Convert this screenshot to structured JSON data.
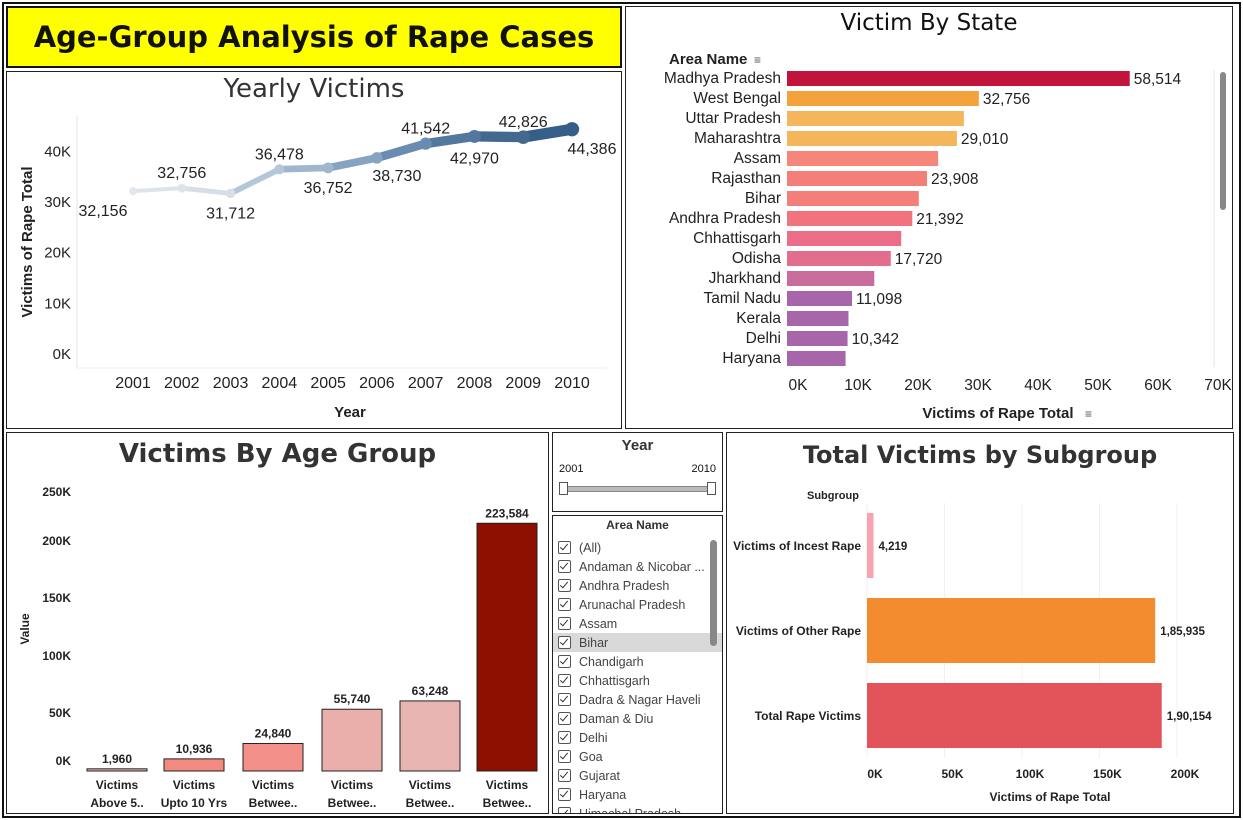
{
  "dashboard_title": "Age-Group Analysis of Rape Cases",
  "colors": {
    "title_bg": "#ffff00"
  },
  "yearly": {
    "title": "Yearly Victims",
    "chart_data": {
      "type": "line",
      "x": [
        2001,
        2002,
        2003,
        2004,
        2005,
        2006,
        2007,
        2008,
        2009,
        2010
      ],
      "values": [
        32156,
        32756,
        31712,
        36478,
        36752,
        38730,
        41542,
        42970,
        42826,
        44386
      ],
      "labels": [
        "32,156",
        "32,756",
        "31,712",
        "36,478",
        "36,752",
        "38,730",
        "41,542",
        "42,970",
        "42,826",
        "44,386"
      ],
      "xlabel": "Year",
      "ylabel": "Victims of Rape Total",
      "yticks": [
        "0K",
        "10K",
        "20K",
        "30K",
        "40K"
      ],
      "ylim": [
        0,
        47000
      ]
    }
  },
  "state": {
    "title": "Victim By State",
    "header": "Area Name",
    "chart_data": {
      "type": "bar",
      "categories": [
        "Madhya Pradesh",
        "West Bengal",
        "Uttar Pradesh",
        "Maharashtra",
        "Assam",
        "Rajasthan",
        "Bihar",
        "Andhra Pradesh",
        "Chhattisgarh",
        "Odisha",
        "Jharkhand",
        "Tamil Nadu",
        "Kerala",
        "Delhi",
        "Haryana"
      ],
      "values": [
        58514,
        32756,
        30200,
        29010,
        25800,
        23908,
        22500,
        21392,
        19500,
        17720,
        14900,
        11098,
        10500,
        10342,
        10000
      ],
      "labels": [
        "58,514",
        "32,756",
        "",
        "29,010",
        "",
        "23,908",
        "",
        "21,392",
        "",
        "17,720",
        "",
        "11,098",
        "",
        "10,342",
        ""
      ],
      "colors": [
        "#c0143c",
        "#f3a23c",
        "#f4b55b",
        "#f4b55b",
        "#f6867a",
        "#f47e78",
        "#f47e78",
        "#f1737d",
        "#eb6d88",
        "#e36d8c",
        "#c86c9c",
        "#a866aa",
        "#a866aa",
        "#a866aa",
        "#a866aa"
      ],
      "xticks": [
        "0K",
        "10K",
        "20K",
        "30K",
        "40K",
        "50K",
        "60K",
        "70K"
      ],
      "xlim": [
        0,
        70000
      ],
      "xlabel": "Victims of Rape Total"
    }
  },
  "age": {
    "title": "Victims By Age Group",
    "chart_data": {
      "type": "bar",
      "categories_line1": [
        "Victims",
        "Victims",
        "Victims",
        "Victims",
        "Victims",
        "Victims"
      ],
      "categories_line2": [
        "Above 5..",
        "Upto 10 Yrs",
        "Betwee..",
        "Betwee..",
        "Betwee..",
        "Betwee.."
      ],
      "values": [
        1960,
        10936,
        24840,
        55740,
        63248,
        223584
      ],
      "labels": [
        "1,960",
        "10,936",
        "24,840",
        "55,740",
        "63,248",
        "223,584"
      ],
      "colors": [
        "#f2b2ab",
        "#f28a82",
        "#f39089",
        "#eaaeab",
        "#e8b4b2",
        "#8c0f00"
      ],
      "ylabel": "Value",
      "yticks": [
        "0K",
        "50K",
        "100K",
        "150K",
        "200K",
        "250K"
      ],
      "ylim": [
        0,
        250000
      ]
    }
  },
  "year_filter": {
    "title": "Year",
    "min": "2001",
    "max": "2010"
  },
  "area_filter": {
    "title": "Area Name",
    "items": [
      "(All)",
      "Andaman & Nicobar ...",
      "Andhra Pradesh",
      "Arunachal Pradesh",
      "Assam",
      "Bihar",
      "Chandigarh",
      "Chhattisgarh",
      "Dadra & Nagar Haveli",
      "Daman & Diu",
      "Delhi",
      "Goa",
      "Gujarat",
      "Haryana",
      "Himachal Pradesh"
    ],
    "highlighted": "Bihar"
  },
  "subgroup": {
    "title": "Total Victims by Subgroup",
    "header": "Subgroup",
    "chart_data": {
      "type": "bar",
      "categories": [
        "Victims of Incest Rape",
        "Victims of Other Rape",
        "Total Rape Victims"
      ],
      "values": [
        4219,
        185935,
        190154
      ],
      "labels": [
        "4,219",
        "1,85,935",
        "1,90,154"
      ],
      "colors": [
        "#f7a3b1",
        "#f28c2e",
        "#e2545a"
      ],
      "xticks": [
        "0K",
        "50K",
        "100K",
        "150K",
        "200K"
      ],
      "xlim": [
        0,
        200000
      ],
      "xlabel": "Victims of Rape Total"
    }
  }
}
